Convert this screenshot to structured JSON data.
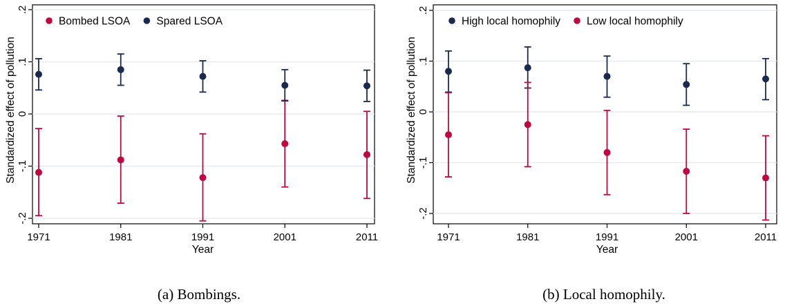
{
  "chart_data": [
    {
      "type": "scatter",
      "caption": "(a) Bombings.",
      "xlabel": "Year",
      "ylabel": "Standardized effect of pollution",
      "x": [
        1971,
        1981,
        1991,
        2001,
        2011
      ],
      "xticks": [
        "1971",
        "1981",
        "1991",
        "2001",
        "2011"
      ],
      "yticks": [
        0.2,
        0.1,
        0,
        -0.1,
        -0.2
      ],
      "ytick_labels": [
        ".2",
        ".1",
        "0",
        "-.1",
        "-.2"
      ],
      "ylim": [
        -0.22,
        0.22
      ],
      "grid": true,
      "legend_position": "top-left",
      "series": [
        {
          "name": "Bombed LSOA",
          "color": "#c1073f",
          "values": [
            -0.112,
            -0.088,
            -0.122,
            -0.057,
            -0.078
          ],
          "ci_low": [
            -0.195,
            -0.171,
            -0.205,
            -0.14,
            -0.162
          ],
          "ci_high": [
            -0.028,
            -0.004,
            -0.038,
            0.026,
            0.005
          ]
        },
        {
          "name": "Spared LSOA",
          "color": "#1a2a4f",
          "values": [
            0.076,
            0.085,
            0.072,
            0.055,
            0.054
          ],
          "ci_low": [
            0.046,
            0.055,
            0.042,
            0.025,
            0.024
          ],
          "ci_high": [
            0.106,
            0.115,
            0.102,
            0.085,
            0.084
          ]
        }
      ]
    },
    {
      "type": "scatter",
      "caption": "(b) Local homophily.",
      "xlabel": "Year",
      "ylabel": "Standardized effect of pollution",
      "x": [
        1971,
        1981,
        1991,
        2001,
        2011
      ],
      "xticks": [
        "1971",
        "1981",
        "1991",
        "2001",
        "2011"
      ],
      "yticks": [
        0.2,
        0.1,
        0,
        -0.1,
        -0.2
      ],
      "ytick_labels": [
        ".2",
        ".1",
        "0",
        "-.1",
        "-.2"
      ],
      "ylim": [
        -0.22,
        0.22
      ],
      "grid": true,
      "legend_position": "top-left",
      "series": [
        {
          "name": "High local homophily",
          "color": "#1a2a4f",
          "values": [
            0.08,
            0.087,
            0.07,
            0.054,
            0.065
          ],
          "ci_low": [
            0.039,
            0.047,
            0.029,
            0.013,
            0.024
          ],
          "ci_high": [
            0.12,
            0.128,
            0.11,
            0.095,
            0.105
          ]
        },
        {
          "name": "Low local homophily",
          "color": "#c1073f",
          "values": [
            -0.045,
            -0.025,
            -0.08,
            -0.117,
            -0.13
          ],
          "ci_low": [
            -0.128,
            -0.108,
            -0.163,
            -0.2,
            -0.213
          ],
          "ci_high": [
            0.038,
            0.058,
            0.003,
            -0.034,
            -0.047
          ]
        }
      ]
    }
  ]
}
